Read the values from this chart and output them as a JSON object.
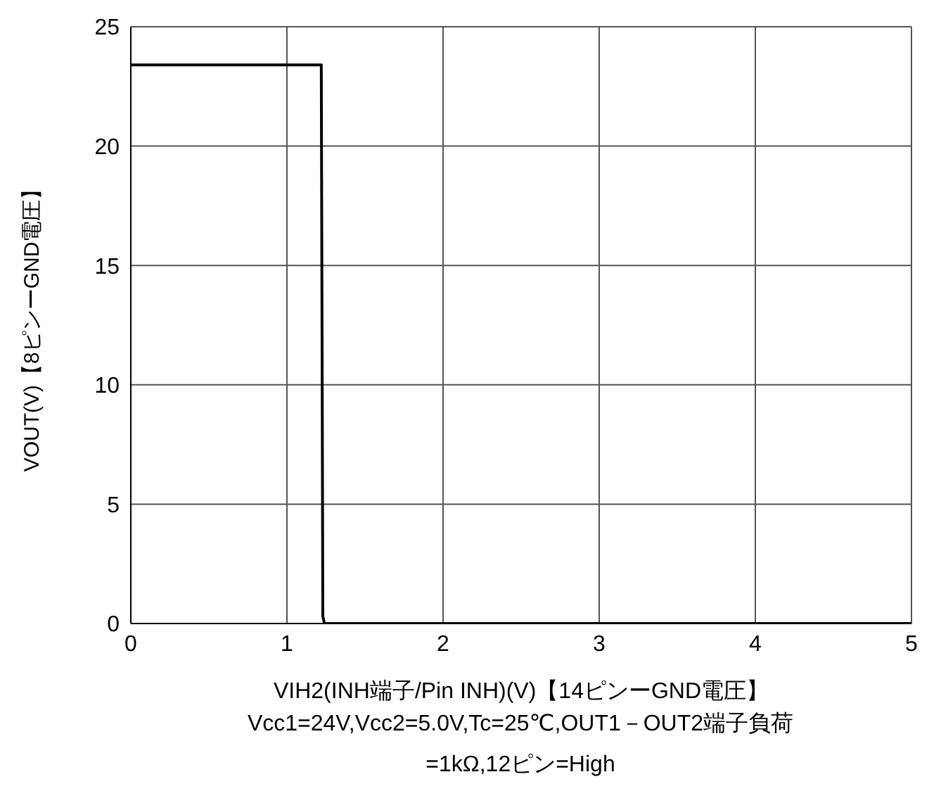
{
  "chart_data": {
    "type": "line",
    "xlabel": "VIH2(INH端子/Pin INH)(V)【14ピンーGND電圧】",
    "ylabel": "VOUT(V)【8ピンーGND電圧】",
    "annotations": [
      "Vcc1=24V,Vcc2=5.0V,Tc=25℃,OUT1－OUT2端子負荷=1kΩ,12ピン=High"
    ],
    "series": [
      {
        "color": "#000000",
        "x": [
          0,
          1.22,
          1.23,
          1.24,
          5
        ],
        "values": [
          23.4,
          23.4,
          0.3,
          0,
          0
        ]
      }
    ],
    "xlim": [
      0,
      5
    ],
    "xticks": [
      0,
      1,
      2,
      3,
      4,
      5
    ],
    "ylim": [
      0,
      25
    ],
    "yticks": [
      0,
      5,
      10,
      15,
      20,
      25
    ],
    "grid": true,
    "marker": "none",
    "line_style": "solid"
  }
}
